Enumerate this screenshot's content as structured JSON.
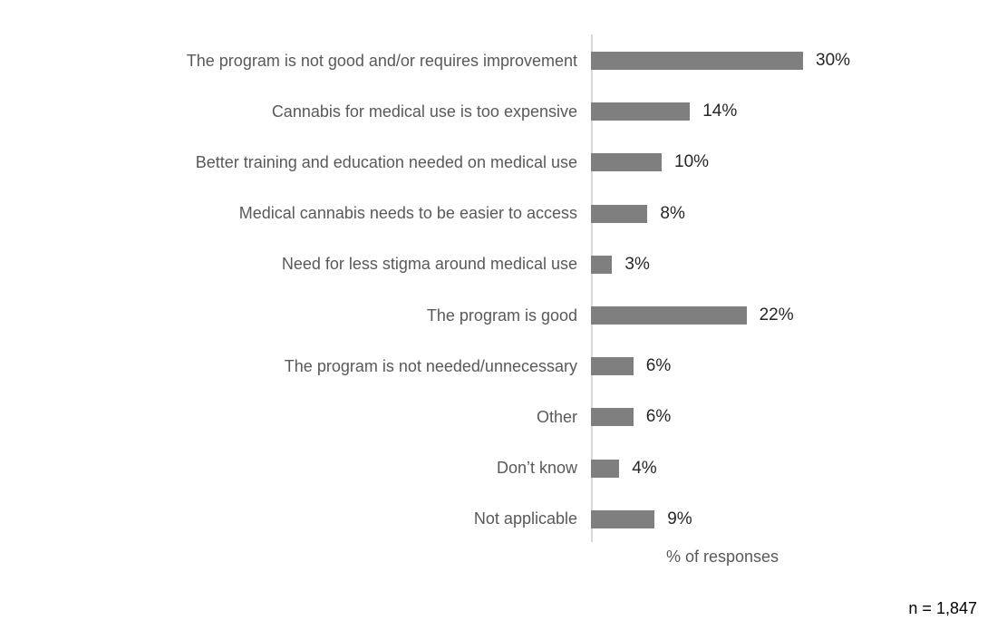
{
  "chart_data": {
    "type": "bar",
    "orientation": "horizontal",
    "categories": [
      "The program is not good and/or requires improvement",
      "Cannabis for medical use is too expensive",
      "Better training and education needed on medical use",
      "Medical cannabis needs to be easier to access",
      "Need for less stigma around medical use",
      "The program is good",
      "The program is not needed/unnecessary",
      "Other",
      "Don’t know",
      "Not applicable"
    ],
    "values": [
      30,
      14,
      10,
      8,
      3,
      22,
      6,
      6,
      4,
      9
    ],
    "display_values": [
      "30%",
      "14%",
      "10%",
      "8%",
      "3%",
      "22%",
      "6%",
      "6%",
      "4%",
      "9%"
    ],
    "xlabel": "% of responses",
    "xlim": [
      0,
      30
    ],
    "grid": false,
    "legend": null,
    "bar_color": "#7f7f7f",
    "axis_line_color": "#d9d9d9",
    "category_label_color": "#595959",
    "value_label_color": "#262626",
    "background_color": "#ffffff"
  },
  "footnote": "n = 1,847"
}
